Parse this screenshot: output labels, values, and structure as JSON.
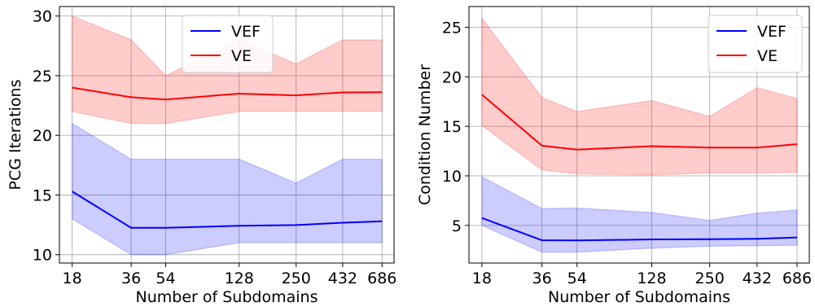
{
  "chart_data": [
    {
      "type": "line",
      "title": "",
      "xlabel": "Number of Subdomains",
      "ylabel": "PCG Iterations",
      "x_scale": "log",
      "x": [
        18,
        36,
        54,
        128,
        250,
        432,
        686
      ],
      "xticks": [
        "18",
        "36",
        "54",
        "128",
        "250",
        "432",
        "686"
      ],
      "yticks": [
        "10",
        "15",
        "20",
        "25",
        "30"
      ],
      "ytick_values": [
        10,
        15,
        20,
        25,
        30
      ],
      "xlim": [
        15.5,
        790
      ],
      "ylim": [
        9.3,
        30.8
      ],
      "grid": true,
      "legend_position": "upper center",
      "series": [
        {
          "name": "VEF",
          "color": "#0000ff",
          "band_color": "#0000ff",
          "mean": [
            15.3,
            12.25,
            12.25,
            12.42,
            12.48,
            12.68,
            12.8
          ],
          "min": [
            13,
            10,
            10,
            11,
            11,
            11,
            11
          ],
          "max": [
            21,
            18,
            18,
            18,
            16,
            18,
            18
          ]
        },
        {
          "name": "VE",
          "color": "#ff0000",
          "band_color": "#ff0000",
          "mean": [
            24.0,
            23.2,
            23.0,
            23.5,
            23.35,
            23.6,
            23.62
          ],
          "min": [
            22,
            21,
            21,
            22,
            22,
            22,
            22
          ],
          "max": [
            30,
            28,
            25,
            28,
            26,
            28,
            28
          ]
        }
      ]
    },
    {
      "type": "line",
      "title": "",
      "xlabel": "Number of Subdomains",
      "ylabel": "Condition Number",
      "x_scale": "log",
      "x": [
        18,
        36,
        54,
        128,
        250,
        432,
        686
      ],
      "xticks": [
        "18",
        "36",
        "54",
        "128",
        "250",
        "432",
        "686"
      ],
      "yticks": [
        "5",
        "10",
        "15",
        "20",
        "25"
      ],
      "ytick_values": [
        5,
        10,
        15,
        20,
        25
      ],
      "xlim": [
        15.5,
        790
      ],
      "ylim": [
        1.2,
        27.1
      ],
      "grid": true,
      "legend_position": "upper right",
      "series": [
        {
          "name": "VEF",
          "color": "#0000ff",
          "band_color": "#0000ff",
          "mean": [
            5.75,
            3.5,
            3.48,
            3.58,
            3.6,
            3.65,
            3.78
          ],
          "min": [
            5.0,
            2.3,
            2.3,
            2.7,
            2.9,
            2.95,
            3.0
          ],
          "max": [
            9.9,
            6.7,
            6.75,
            6.3,
            5.5,
            6.25,
            6.55
          ]
        },
        {
          "name": "VE",
          "color": "#ff0000",
          "band_color": "#ff0000",
          "mean": [
            18.2,
            13.05,
            12.65,
            13.0,
            12.85,
            12.85,
            13.2
          ],
          "min": [
            15.1,
            10.6,
            10.2,
            10.1,
            10.3,
            10.3,
            10.35
          ],
          "max": [
            25.9,
            17.9,
            16.5,
            17.6,
            16.0,
            18.9,
            17.8
          ]
        }
      ]
    }
  ]
}
